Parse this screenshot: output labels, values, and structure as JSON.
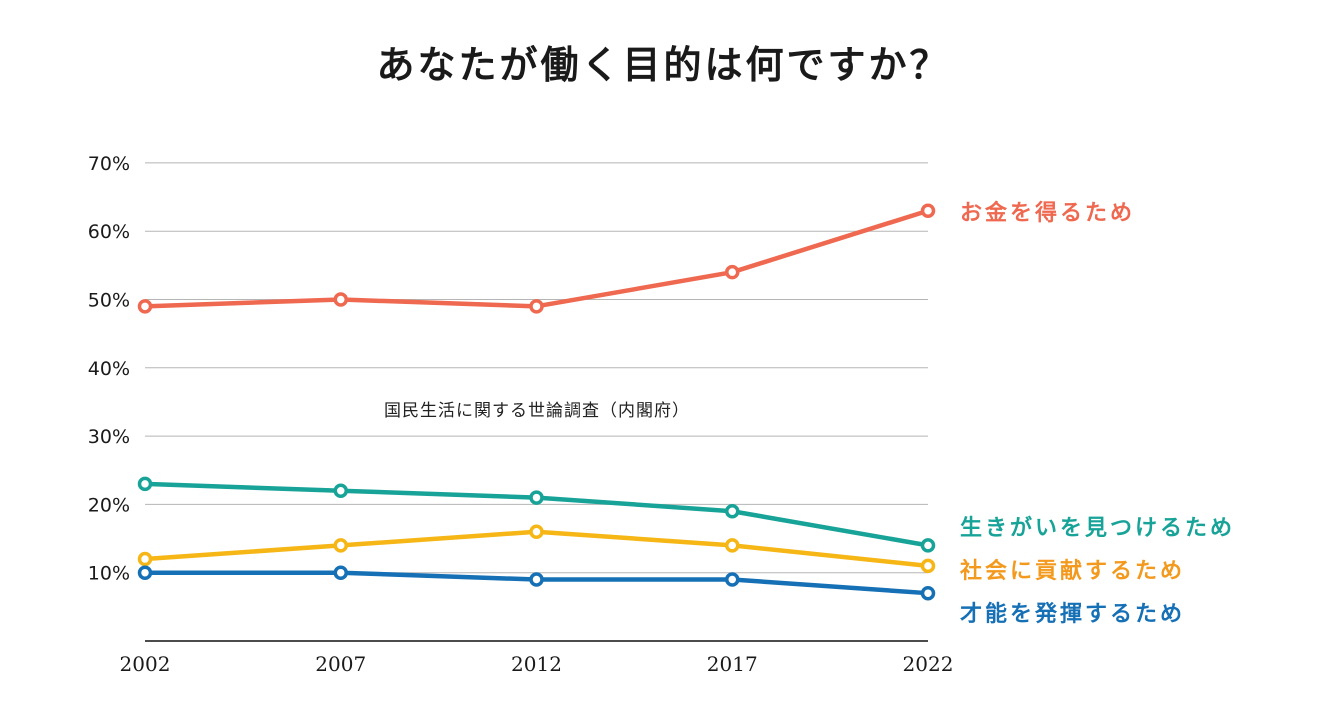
{
  "chart_data": {
    "type": "line",
    "title": "あなたが働く目的は何ですか？",
    "annotation": "国民生活に関する世論調査（内閣府）",
    "xlabel": "",
    "ylabel": "",
    "x": [
      "2002",
      "2007",
      "2012",
      "2017",
      "2022"
    ],
    "yticks": [
      "10%",
      "20%",
      "30%",
      "40%",
      "50%",
      "60%",
      "70%"
    ],
    "ylim": [
      0,
      70
    ],
    "grid": true,
    "legend_placement": "right, inline at line ends",
    "series": [
      {
        "name": "お金を得るため",
        "color": "#ef6850",
        "values": [
          49,
          50,
          49,
          54,
          63
        ]
      },
      {
        "name": "生きがいを見つけるため",
        "color": "#18a398",
        "values": [
          23,
          22,
          21,
          19,
          14
        ]
      },
      {
        "name": "社会に貢献するため",
        "color": "#f5b616",
        "values": [
          12,
          14,
          16,
          14,
          11
        ]
      },
      {
        "name": "才能を発揮するため",
        "color": "#1670b5",
        "values": [
          10,
          10,
          9,
          9,
          7
        ]
      }
    ],
    "legend_colors": [
      "#ef6850",
      "#18a398",
      "#f39a1e",
      "#1670b5"
    ]
  }
}
